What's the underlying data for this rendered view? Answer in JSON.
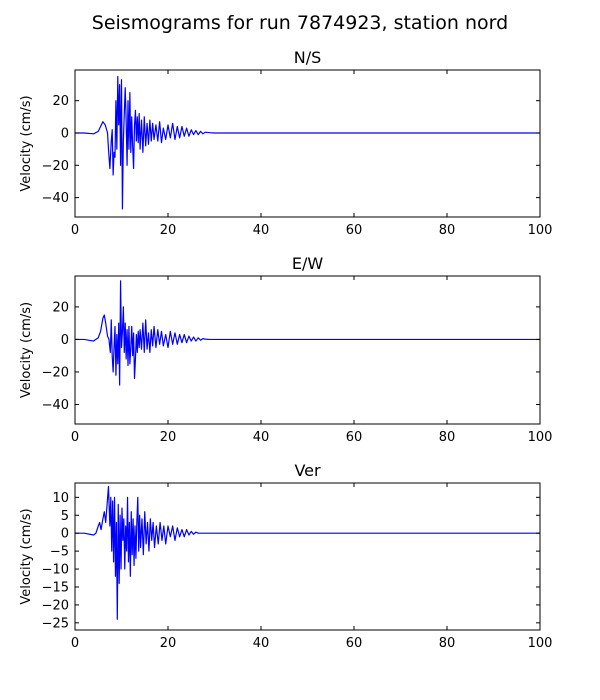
{
  "figure": {
    "title": "Seismograms for run 7874923, station nord"
  },
  "chart_data": [
    {
      "type": "line",
      "title": "N/S",
      "xlabel": "",
      "ylabel": "Velocity (cm/s)",
      "xlim": [
        0,
        100
      ],
      "ylim": [
        -52,
        39
      ],
      "xticks": [
        0,
        20,
        40,
        60,
        80,
        100
      ],
      "yticks": [
        -40,
        -20,
        0,
        20
      ],
      "xtick_labels": [
        "0",
        "20",
        "40",
        "60",
        "80",
        "100"
      ],
      "ytick_labels": [
        "−40",
        "−20",
        "0",
        "20"
      ],
      "grid": false,
      "color": "#0000ff",
      "series": [
        {
          "x": [
            0,
            2,
            4,
            5,
            5.5,
            6,
            6.5,
            7,
            7.2,
            7.5,
            7.8,
            8,
            8.2,
            8.4,
            8.6,
            8.8,
            9,
            9.2,
            9.4,
            9.6,
            9.8,
            10,
            10.2,
            10.4,
            10.6,
            10.8,
            11,
            11.2,
            11.4,
            11.6,
            11.8,
            12,
            12.2,
            12.4,
            12.6,
            12.8,
            13,
            13.2,
            13.4,
            13.6,
            13.8,
            14,
            14.3,
            14.6,
            14.9,
            15.2,
            15.5,
            15.8,
            16.1,
            16.4,
            16.7,
            17,
            17.4,
            17.8,
            18.2,
            18.6,
            19,
            19.5,
            20,
            20.5,
            21,
            21.5,
            22,
            22.5,
            23,
            23.5,
            24,
            24.5,
            25,
            25.5,
            26,
            26.5,
            27,
            27.5,
            28,
            29,
            30,
            35,
            100
          ],
          "y": [
            0,
            0,
            -0.5,
            1,
            4,
            7,
            5,
            0,
            -10,
            -22,
            -5,
            2,
            -26,
            -12,
            -15,
            20,
            -10,
            35,
            5,
            30,
            -20,
            33,
            -47,
            -5,
            12,
            28,
            8,
            -20,
            20,
            -10,
            25,
            -12,
            10,
            -8,
            -22,
            5,
            14,
            -5,
            10,
            -6,
            12,
            -10,
            8,
            -12,
            10,
            -8,
            6,
            -7,
            8,
            -5,
            6,
            -4,
            5,
            -5,
            7,
            -6,
            3,
            -4,
            5,
            -3,
            6,
            -4,
            4,
            -3,
            4,
            -2,
            3,
            -2,
            2,
            -1,
            1.5,
            -1,
            1,
            -0.5,
            0.5,
            0.2,
            0,
            0,
            0
          ]
        }
      ]
    },
    {
      "type": "line",
      "title": "E/W",
      "xlabel": "",
      "ylabel": "Velocity (cm/s)",
      "xlim": [
        0,
        100
      ],
      "ylim": [
        -52,
        39
      ],
      "xticks": [
        0,
        20,
        40,
        60,
        80,
        100
      ],
      "yticks": [
        -40,
        -20,
        0,
        20
      ],
      "xtick_labels": [
        "0",
        "20",
        "40",
        "60",
        "80",
        "100"
      ],
      "ytick_labels": [
        "−40",
        "−20",
        "0",
        "20"
      ],
      "grid": false,
      "color": "#0000ff",
      "series": [
        {
          "x": [
            0,
            2,
            4,
            5,
            5.5,
            6,
            6.3,
            6.6,
            7,
            7.3,
            7.6,
            7.8,
            8,
            8.2,
            8.4,
            8.6,
            8.8,
            9,
            9.2,
            9.4,
            9.6,
            9.8,
            10,
            10.2,
            10.4,
            10.6,
            10.8,
            11,
            11.2,
            11.4,
            11.6,
            11.8,
            12,
            12.2,
            12.4,
            12.6,
            12.8,
            13,
            13.2,
            13.4,
            13.6,
            13.8,
            14,
            14.3,
            14.6,
            14.9,
            15.2,
            15.5,
            15.8,
            16.1,
            16.4,
            16.7,
            17,
            17.4,
            17.8,
            18.2,
            18.6,
            19,
            19.5,
            20,
            20.5,
            21,
            21.5,
            22,
            22.5,
            23,
            23.5,
            24,
            24.5,
            25,
            25.5,
            26,
            26.5,
            27,
            27.5,
            28,
            29,
            30,
            35,
            100
          ],
          "y": [
            0,
            0,
            -1,
            1,
            5,
            13,
            15,
            10,
            2,
            0,
            -8,
            12,
            -10,
            -20,
            -5,
            8,
            -22,
            3,
            -15,
            10,
            -28,
            36,
            -5,
            5,
            20,
            -8,
            10,
            -12,
            6,
            -16,
            8,
            -15,
            -5,
            8,
            -10,
            4,
            -24,
            -12,
            3,
            -8,
            5,
            -5,
            6,
            -6,
            10,
            -8,
            12,
            -6,
            4,
            -8,
            6,
            -4,
            8,
            -5,
            6,
            -3,
            5,
            -4,
            3,
            -5,
            5,
            -3,
            4,
            -3,
            3,
            -2,
            3,
            -2,
            2,
            -1,
            1.5,
            -1,
            1,
            -0.5,
            0.5,
            0.2,
            0,
            0,
            0,
            0
          ]
        }
      ]
    },
    {
      "type": "line",
      "title": "Ver",
      "xlabel": "",
      "ylabel": "Velocity (cm/s)",
      "xlim": [
        0,
        100
      ],
      "ylim": [
        -27,
        14
      ],
      "xticks": [
        0,
        20,
        40,
        60,
        80,
        100
      ],
      "yticks": [
        -25,
        -20,
        -15,
        -10,
        -5,
        0,
        5,
        10
      ],
      "xtick_labels": [
        "0",
        "20",
        "40",
        "60",
        "80",
        "100"
      ],
      "ytick_labels": [
        "−25",
        "−20",
        "−15",
        "−10",
        "−5",
        "0",
        "5",
        "10"
      ],
      "grid": false,
      "color": "#0000ff",
      "series": [
        {
          "x": [
            0,
            2,
            4,
            4.5,
            5,
            5.3,
            5.6,
            6,
            6.3,
            6.6,
            6.9,
            7.2,
            7.5,
            7.7,
            7.9,
            8.1,
            8.3,
            8.5,
            8.7,
            8.9,
            9.1,
            9.3,
            9.5,
            9.7,
            9.9,
            10.1,
            10.3,
            10.5,
            10.7,
            10.9,
            11.1,
            11.3,
            11.5,
            11.7,
            11.9,
            12.1,
            12.3,
            12.5,
            12.7,
            12.9,
            13.1,
            13.3,
            13.5,
            13.7,
            13.9,
            14.1,
            14.4,
            14.7,
            15,
            15.3,
            15.6,
            15.9,
            16.2,
            16.5,
            16.8,
            17.1,
            17.5,
            17.9,
            18.3,
            18.7,
            19.1,
            19.5,
            20,
            20.5,
            21,
            21.5,
            22,
            22.5,
            23,
            23.5,
            24,
            24.5,
            25,
            25.5,
            26,
            26.5,
            27,
            27.5,
            28,
            29,
            30,
            35,
            100
          ],
          "y": [
            0,
            0,
            -0.5,
            0,
            2,
            3,
            1,
            4,
            6,
            3,
            8,
            13,
            2,
            10,
            -5,
            9,
            -8,
            10,
            -12,
            3,
            -24,
            8,
            -14,
            5,
            -10,
            7,
            -2,
            4,
            -10,
            2,
            -5,
            10,
            -8,
            3,
            -12,
            6,
            -6,
            4,
            -9,
            2,
            -7,
            3,
            10,
            -5,
            5,
            -4,
            4,
            -6,
            6,
            -3,
            3,
            -5,
            4,
            -2,
            3,
            -4,
            2,
            -3,
            3,
            -2,
            2,
            -3,
            2,
            -1,
            2,
            -2,
            1.5,
            -1,
            1,
            -1,
            1,
            -0.5,
            0.5,
            -0.3,
            0.3,
            0,
            0,
            0,
            0,
            0,
            0,
            0,
            0
          ]
        }
      ]
    }
  ]
}
